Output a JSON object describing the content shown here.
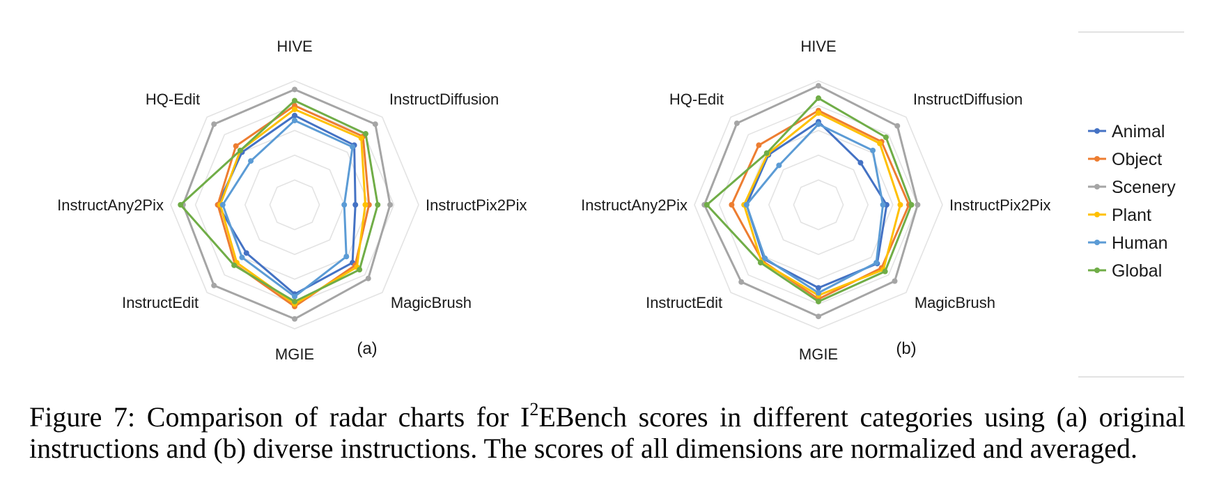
{
  "chart_data": [
    {
      "type": "radar",
      "panel_label": "(a)",
      "axes": [
        "HIVE",
        "InstructDiffusion",
        "InstructPix2Pix",
        "MagicBrush",
        "MGIE",
        "InstructEdit",
        "InstructAny2Pix",
        "HQ-Edit"
      ],
      "rlim": [
        0,
        1
      ],
      "grid": true,
      "series": [
        {
          "name": "Animal",
          "values": [
            0.72,
            0.68,
            0.49,
            0.66,
            0.72,
            0.55,
            0.62,
            0.6
          ]
        },
        {
          "name": "Object",
          "values": [
            0.8,
            0.78,
            0.6,
            0.69,
            0.82,
            0.68,
            0.62,
            0.67
          ]
        },
        {
          "name": "Scenery",
          "values": [
            0.93,
            0.92,
            0.77,
            0.84,
            0.92,
            0.92,
            0.9,
            0.92
          ]
        },
        {
          "name": "Plant",
          "values": [
            0.77,
            0.76,
            0.57,
            0.71,
            0.8,
            0.66,
            0.6,
            0.62
          ]
        },
        {
          "name": "Human",
          "values": [
            0.68,
            0.66,
            0.4,
            0.59,
            0.74,
            0.6,
            0.58,
            0.5
          ]
        },
        {
          "name": "Global",
          "values": [
            0.84,
            0.81,
            0.67,
            0.74,
            0.78,
            0.69,
            0.92,
            0.62
          ]
        }
      ]
    },
    {
      "type": "radar",
      "panel_label": "(b)",
      "axes": [
        "HIVE",
        "InstructDiffusion",
        "InstructPix2Pix",
        "MagicBrush",
        "MGIE",
        "InstructEdit",
        "InstructAny2Pix",
        "HQ-Edit"
      ],
      "rlim": [
        0,
        1
      ],
      "grid": true,
      "series": [
        {
          "name": "Animal",
          "values": [
            0.67,
            0.48,
            0.55,
            0.67,
            0.67,
            0.62,
            0.58,
            0.57
          ]
        },
        {
          "name": "Object",
          "values": [
            0.76,
            0.72,
            0.73,
            0.72,
            0.76,
            0.64,
            0.7,
            0.68
          ]
        },
        {
          "name": "Scenery",
          "values": [
            0.96,
            0.9,
            0.8,
            0.87,
            0.9,
            0.88,
            0.92,
            0.93
          ]
        },
        {
          "name": "Plant",
          "values": [
            0.74,
            0.7,
            0.66,
            0.74,
            0.73,
            0.65,
            0.6,
            0.58
          ]
        },
        {
          "name": "Human",
          "values": [
            0.65,
            0.62,
            0.52,
            0.66,
            0.71,
            0.61,
            0.58,
            0.45
          ]
        },
        {
          "name": "Global",
          "values": [
            0.86,
            0.77,
            0.75,
            0.76,
            0.78,
            0.66,
            0.9,
            0.59
          ]
        }
      ]
    }
  ],
  "legend": [
    {
      "name": "Animal",
      "color": "#4472c4"
    },
    {
      "name": "Object",
      "color": "#ed7d31"
    },
    {
      "name": "Scenery",
      "color": "#a5a5a5"
    },
    {
      "name": "Plant",
      "color": "#ffc000"
    },
    {
      "name": "Human",
      "color": "#5b9bd5"
    },
    {
      "name": "Global",
      "color": "#70ad47"
    }
  ],
  "caption": {
    "prefix": "Figure 7:  Comparison of radar charts for I",
    "sup": "2",
    "suffix": "EBench scores in different categories using (a) original instructions and (b) diverse instructions. The scores of all dimensions are normalized and averaged."
  }
}
